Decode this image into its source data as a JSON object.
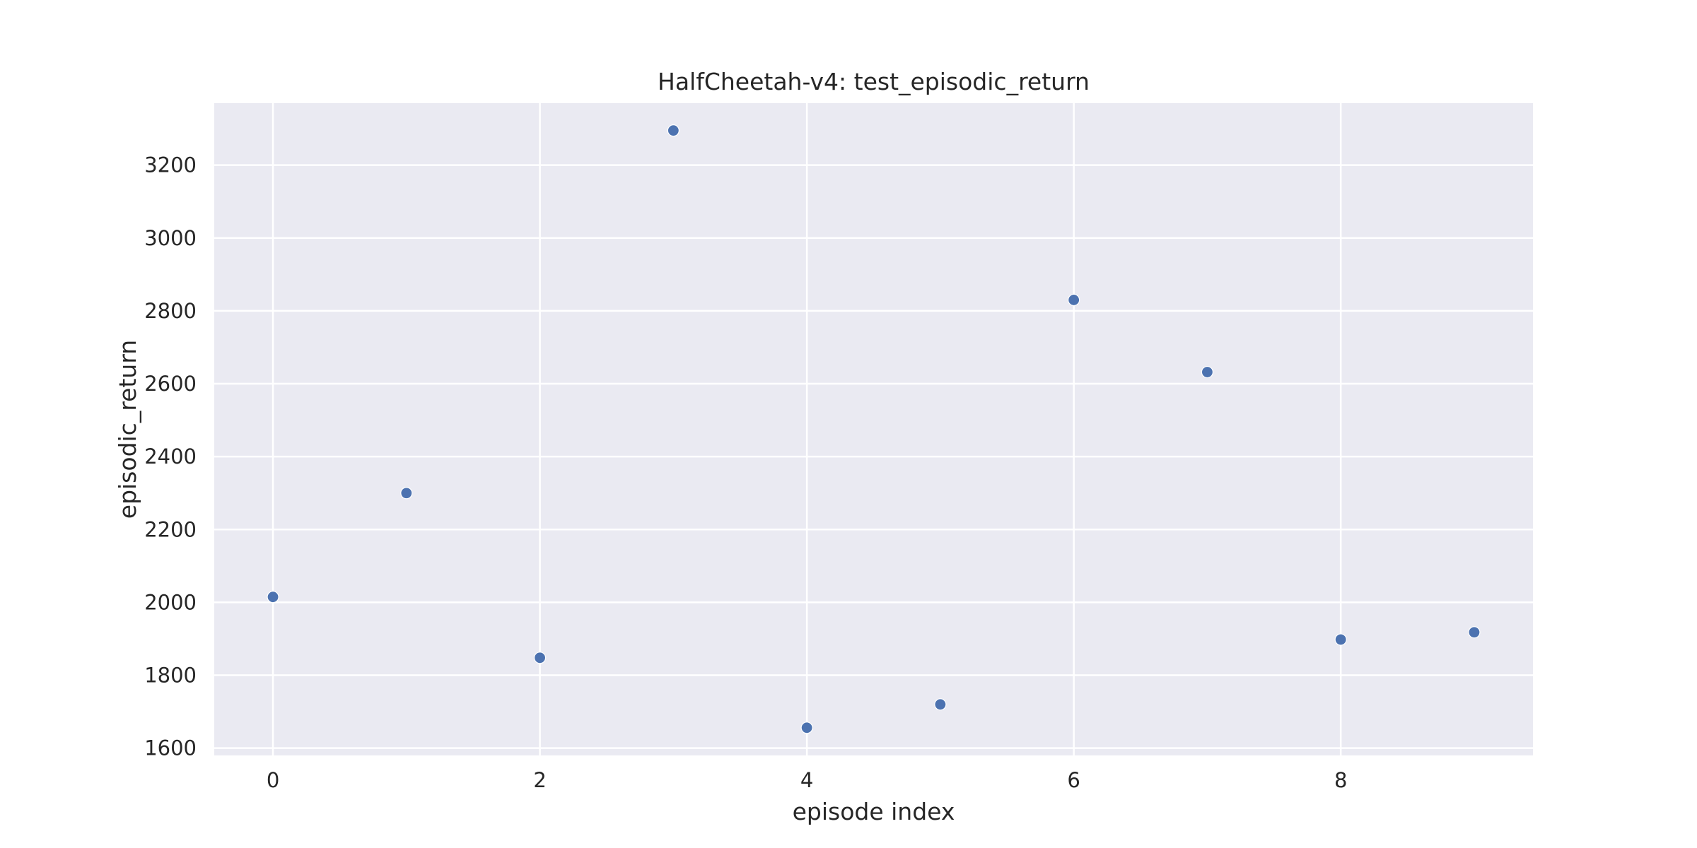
{
  "chart_data": {
    "type": "scatter",
    "title": "HalfCheetah-v4: test_episodic_return",
    "xlabel": "episode index",
    "ylabel": "episodic_return",
    "x": [
      0,
      1,
      2,
      3,
      4,
      5,
      6,
      7,
      8,
      9
    ],
    "y": [
      2015,
      2300,
      1848,
      3295,
      1656,
      1720,
      2830,
      2632,
      1898,
      1918
    ],
    "xlim": [
      -0.44,
      9.44
    ],
    "ylim": [
      1580,
      3370
    ],
    "xticks": [
      0,
      2,
      4,
      6,
      8
    ],
    "yticks": [
      1600,
      1800,
      2000,
      2200,
      2400,
      2600,
      2800,
      3000,
      3200
    ],
    "grid": true,
    "legend": "none",
    "colors": {
      "point": "#4c72b0",
      "plot_background": "#eaeaf2",
      "grid": "#ffffff",
      "text": "#262626"
    }
  }
}
